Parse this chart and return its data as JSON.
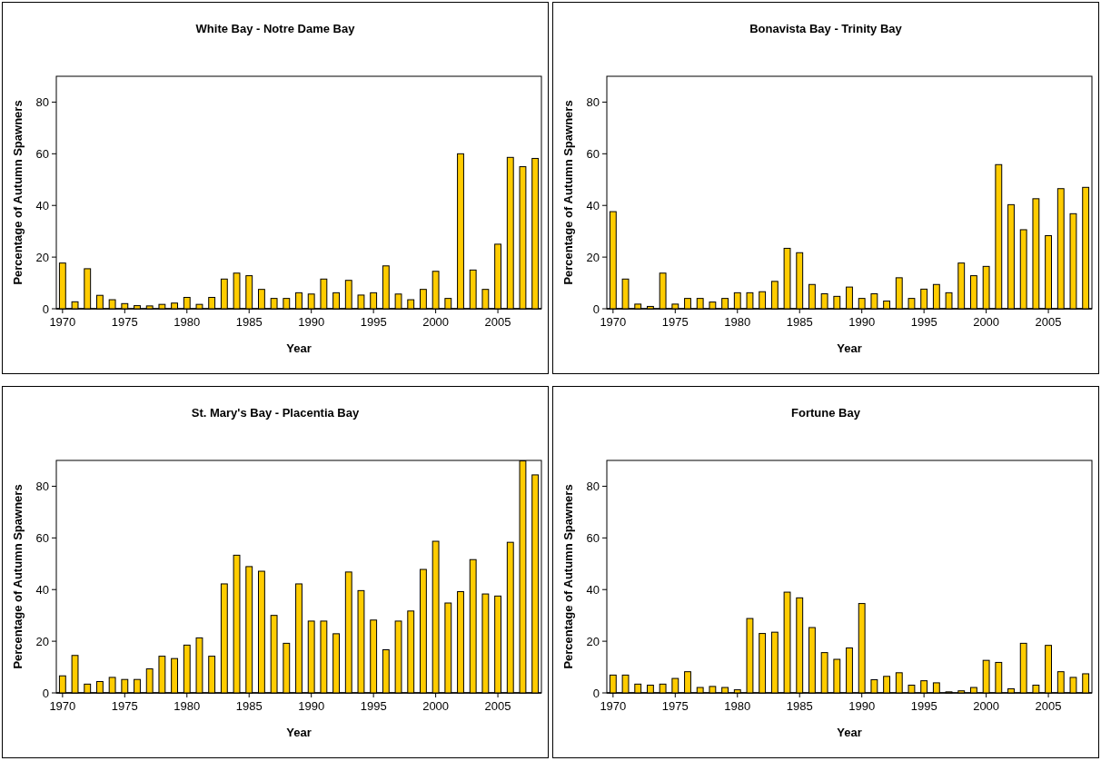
{
  "chart_data": [
    {
      "type": "bar",
      "title": "White Bay - Notre Dame Bay",
      "xlabel": "Year",
      "ylabel": "Percentage of Autumn Spawners",
      "x": [
        1970,
        1971,
        1972,
        1973,
        1974,
        1975,
        1976,
        1977,
        1978,
        1979,
        1980,
        1981,
        1982,
        1983,
        1984,
        1985,
        1986,
        1987,
        1988,
        1989,
        1990,
        1991,
        1992,
        1993,
        1994,
        1995,
        1996,
        1997,
        1998,
        1999,
        2000,
        2001,
        2002,
        2003,
        2004,
        2005,
        2006,
        2007,
        2008
      ],
      "series": [
        {
          "color": "#ffcc00",
          "values": [
            17.7,
            2.7,
            15.5,
            5.2,
            3.5,
            2,
            1.2,
            1.1,
            1.7,
            2.2,
            4.4,
            1.7,
            4.4,
            11.5,
            13.8,
            12.8,
            7.5,
            4,
            4,
            6.2,
            5.7,
            11.5,
            6.2,
            11,
            5.3,
            6.2,
            16.6,
            5.7,
            3.5,
            7.5,
            14.5,
            4,
            60,
            15,
            7.5,
            25,
            58.6,
            55,
            58.2
          ]
        }
      ],
      "xlim": [
        1969.5,
        2008.5
      ],
      "xticks": [
        1970,
        1975,
        1980,
        1985,
        1990,
        1995,
        2000,
        2005
      ],
      "ylim": [
        0,
        90
      ],
      "yticks": [
        0,
        20,
        40,
        60,
        80
      ]
    },
    {
      "type": "bar",
      "title": "Bonavista Bay - Trinity Bay",
      "xlabel": "Year",
      "ylabel": "Percentage of Autumn Spawners",
      "x": [
        1970,
        1971,
        1972,
        1973,
        1974,
        1975,
        1976,
        1977,
        1978,
        1979,
        1980,
        1981,
        1982,
        1983,
        1984,
        1985,
        1986,
        1987,
        1988,
        1989,
        1990,
        1991,
        1992,
        1993,
        1994,
        1995,
        1996,
        1997,
        1998,
        1999,
        2000,
        2001,
        2002,
        2003,
        2004,
        2005,
        2006,
        2007,
        2008
      ],
      "series": [
        {
          "color": "#ffcc00",
          "values": [
            37.6,
            11.5,
            1.8,
            0.9,
            13.8,
            1.8,
            4,
            4,
            2.6,
            4,
            6.2,
            6.2,
            6.6,
            10.6,
            23.4,
            21.7,
            9.4,
            5.8,
            4.8,
            8.4,
            4,
            5.8,
            3,
            12,
            4,
            7.6,
            9.4,
            6.2,
            17.7,
            12.8,
            16.4,
            55.8,
            40.3,
            30.6,
            42.6,
            28.3,
            46.5,
            36.8,
            47
          ]
        }
      ],
      "xlim": [
        1969.5,
        2008.5
      ],
      "xticks": [
        1970,
        1975,
        1980,
        1985,
        1990,
        1995,
        2000,
        2005
      ],
      "ylim": [
        0,
        90
      ],
      "yticks": [
        0,
        20,
        40,
        60,
        80
      ]
    },
    {
      "type": "bar",
      "title": "St. Mary's Bay - Placentia Bay",
      "xlabel": "Year",
      "ylabel": "Percentage of Autumn Spawners",
      "x": [
        1970,
        1971,
        1972,
        1973,
        1974,
        1975,
        1976,
        1977,
        1978,
        1979,
        1980,
        1981,
        1982,
        1983,
        1984,
        1985,
        1986,
        1987,
        1988,
        1989,
        1990,
        1991,
        1992,
        1993,
        1994,
        1995,
        1996,
        1997,
        1998,
        1999,
        2000,
        2001,
        2002,
        2003,
        2004,
        2005,
        2006,
        2007,
        2008
      ],
      "series": [
        {
          "color": "#ffcc00",
          "values": [
            6.6,
            14.5,
            3.4,
            4.4,
            6,
            5.2,
            5.2,
            9.3,
            14.2,
            13.3,
            18.5,
            21.3,
            14.2,
            42.2,
            53.3,
            48.9,
            47.1,
            30,
            19.2,
            42.2,
            27.8,
            27.8,
            22.9,
            46.8,
            39.6,
            28.2,
            16.7,
            27.8,
            31.7,
            47.8,
            58.7,
            34.8,
            39.2,
            51.6,
            38.3,
            37.5,
            58.3,
            89.8,
            84.4
          ]
        }
      ],
      "xlim": [
        1969.5,
        2008.5
      ],
      "xticks": [
        1970,
        1975,
        1980,
        1985,
        1990,
        1995,
        2000,
        2005
      ],
      "ylim": [
        0,
        90
      ],
      "yticks": [
        0,
        20,
        40,
        60,
        80
      ]
    },
    {
      "type": "bar",
      "title": "Fortune Bay",
      "xlabel": "Year",
      "ylabel": "Percentage of Autumn Spawners",
      "x": [
        1970,
        1971,
        1972,
        1973,
        1974,
        1975,
        1976,
        1977,
        1978,
        1979,
        1980,
        1981,
        1982,
        1983,
        1984,
        1985,
        1986,
        1987,
        1988,
        1989,
        1990,
        1991,
        1992,
        1993,
        1994,
        1995,
        1996,
        1997,
        1998,
        1999,
        2000,
        2001,
        2002,
        2003,
        2004,
        2005,
        2006,
        2007,
        2008
      ],
      "series": [
        {
          "color": "#ffcc00",
          "values": [
            6.9,
            6.9,
            3.4,
            3,
            3.4,
            5.6,
            8.2,
            2.1,
            2.5,
            2.1,
            1.2,
            28.8,
            23,
            23.5,
            39,
            36.8,
            25.3,
            15.6,
            13,
            17.4,
            34.6,
            5.1,
            6.4,
            7.8,
            3,
            4.7,
            3.9,
            0.4,
            0.8,
            2.1,
            12.6,
            11.8,
            1.6,
            19.2,
            3,
            18.4,
            8.2,
            6,
            7.4
          ]
        }
      ],
      "xlim": [
        1969.5,
        2008.5
      ],
      "xticks": [
        1970,
        1975,
        1980,
        1985,
        1990,
        1995,
        2000,
        2005
      ],
      "ylim": [
        0,
        90
      ],
      "yticks": [
        0,
        20,
        40,
        60,
        80
      ]
    }
  ]
}
